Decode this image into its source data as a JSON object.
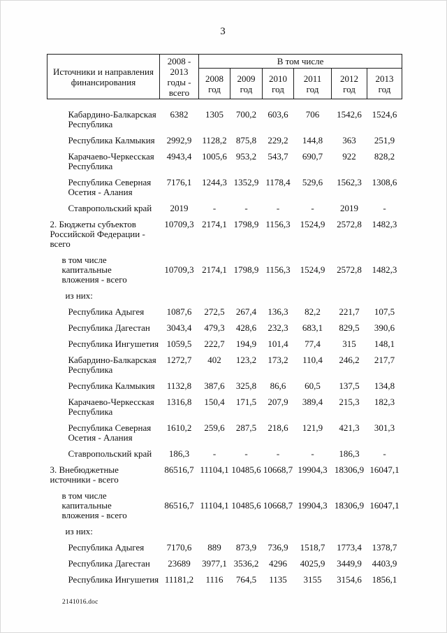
{
  "page": {
    "number": "3",
    "footer_filename": "2141016.doc"
  },
  "table": {
    "header": {
      "source": "Источники и направления\nфинансирования",
      "total": "2008 -\n2013\nгоды -\nвсего",
      "group": "В том числе",
      "years": [
        "2008\nгод",
        "2009\nгод",
        "2010\nгод",
        "2011\nгод",
        "2012\nгод",
        "2013\nгод"
      ]
    },
    "rows": [
      {
        "label": "Кабардино-Балкарская\nРеспублика",
        "kind": "region",
        "valign": "top",
        "values": [
          "6382",
          "1305",
          "700,2",
          "603,6",
          "706",
          "1542,6",
          "1524,6"
        ]
      },
      {
        "label": "Республика Калмыкия",
        "kind": "region",
        "valign": "top",
        "values": [
          "2992,9",
          "1128,2",
          "875,8",
          "229,2",
          "144,8",
          "363",
          "251,9"
        ]
      },
      {
        "label": "Карачаево-Черкесская\nРеспублика",
        "kind": "region",
        "valign": "top",
        "values": [
          "4943,4",
          "1005,6",
          "953,2",
          "543,7",
          "690,7",
          "922",
          "828,2"
        ]
      },
      {
        "label": "Республика Северная\nОсетия - Алания",
        "kind": "region",
        "valign": "top",
        "values": [
          "7176,1",
          "1244,3",
          "1352,9",
          "1178,4",
          "529,6",
          "1562,3",
          "1308,6"
        ]
      },
      {
        "label": "Ставропольский край",
        "kind": "region",
        "valign": "top",
        "values": [
          "2019",
          "-",
          "-",
          "-",
          "-",
          "2019",
          "-"
        ]
      },
      {
        "label": "2. Бюджеты субъектов\nРоссийской Федерации -\nвсего",
        "kind": "section",
        "valign": "top",
        "values": [
          "10709,3",
          "2174,1",
          "1798,9",
          "1156,3",
          "1524,9",
          "2572,8",
          "1482,3"
        ]
      },
      {
        "label": "в том числе\nкапитальные\nвложения - всего",
        "kind": "subtotal",
        "valign": "middle",
        "values": [
          "10709,3",
          "2174,1",
          "1798,9",
          "1156,3",
          "1524,9",
          "2572,8",
          "1482,3"
        ]
      },
      {
        "label": "из них:",
        "kind": "iznih",
        "valign": "top",
        "values": [
          "",
          "",
          "",
          "",
          "",
          "",
          ""
        ]
      },
      {
        "label": "Республика Адыгея",
        "kind": "region",
        "valign": "top",
        "values": [
          "1087,6",
          "272,5",
          "267,4",
          "136,3",
          "82,2",
          "221,7",
          "107,5"
        ]
      },
      {
        "label": "Республика Дагестан",
        "kind": "region",
        "valign": "top",
        "values": [
          "3043,4",
          "479,3",
          "428,6",
          "232,3",
          "683,1",
          "829,5",
          "390,6"
        ]
      },
      {
        "label": "Республика Ингушетия",
        "kind": "region",
        "valign": "top",
        "values": [
          "1059,5",
          "222,7",
          "194,9",
          "101,4",
          "77,4",
          "315",
          "148,1"
        ]
      },
      {
        "label": "Кабардино-Балкарская\nРеспублика",
        "kind": "region",
        "valign": "top",
        "values": [
          "1272,7",
          "402",
          "123,2",
          "173,2",
          "110,4",
          "246,2",
          "217,7"
        ]
      },
      {
        "label": "Республика Калмыкия",
        "kind": "region",
        "valign": "top",
        "values": [
          "1132,8",
          "387,6",
          "325,8",
          "86,6",
          "60,5",
          "137,5",
          "134,8"
        ]
      },
      {
        "label": "Карачаево-Черкесская\nРеспублика",
        "kind": "region",
        "valign": "top",
        "values": [
          "1316,8",
          "150,4",
          "171,5",
          "207,9",
          "389,4",
          "215,3",
          "182,3"
        ]
      },
      {
        "label": "Республика Северная\nОсетия - Алания",
        "kind": "region",
        "valign": "top",
        "values": [
          "1610,2",
          "259,6",
          "287,5",
          "218,6",
          "121,9",
          "421,3",
          "301,3"
        ]
      },
      {
        "label": "Ставропольский край",
        "kind": "region",
        "valign": "top",
        "values": [
          "186,3",
          "-",
          "-",
          "-",
          "-",
          "186,3",
          "-"
        ]
      },
      {
        "label": "3. Внебюджетные\nисточники - всего",
        "kind": "section",
        "valign": "top",
        "values": [
          "86516,7",
          "11104,1",
          "10485,6",
          "10668,7",
          "19904,3",
          "18306,9",
          "16047,1"
        ]
      },
      {
        "label": "в том числе\nкапитальные\nвложения - всего",
        "kind": "subtotal",
        "valign": "middle",
        "values": [
          "86516,7",
          "11104,1",
          "10485,6",
          "10668,7",
          "19904,3",
          "18306,9",
          "16047,1"
        ]
      },
      {
        "label": "из них:",
        "kind": "iznih",
        "valign": "top",
        "values": [
          "",
          "",
          "",
          "",
          "",
          "",
          ""
        ]
      },
      {
        "label": "Республика Адыгея",
        "kind": "region",
        "valign": "top",
        "values": [
          "7170,6",
          "889",
          "873,9",
          "736,9",
          "1518,7",
          "1773,4",
          "1378,7"
        ]
      },
      {
        "label": "Республика Дагестан",
        "kind": "region",
        "valign": "top",
        "values": [
          "23689",
          "3977,1",
          "3536,2",
          "4296",
          "4025,9",
          "3449,9",
          "4403,9"
        ]
      },
      {
        "label": "Республика Ингушетия",
        "kind": "region",
        "valign": "top",
        "values": [
          "11181,2",
          "1116",
          "764,5",
          "1135",
          "3155",
          "3154,6",
          "1856,1"
        ]
      }
    ]
  }
}
